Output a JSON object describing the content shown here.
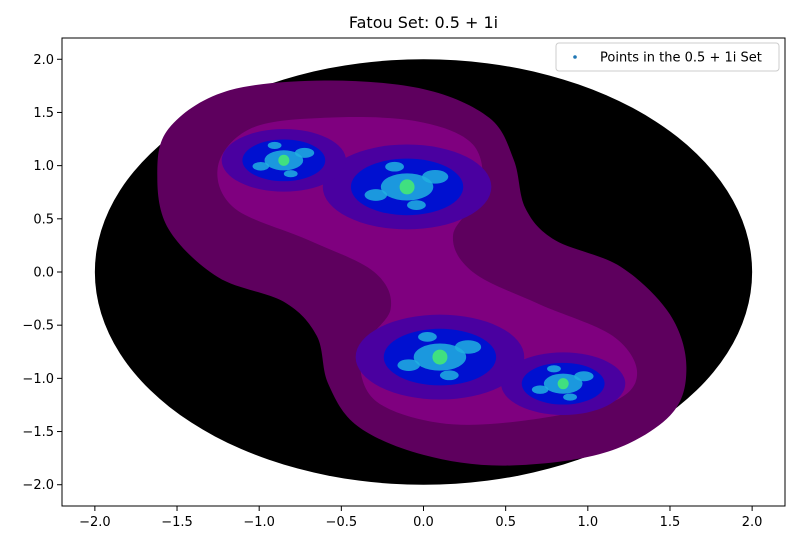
{
  "chart_data": {
    "type": "scatter",
    "title": "Fatou Set: 0.5 + 1i",
    "xlabel": "",
    "ylabel": "",
    "xlim": [
      -2.2,
      2.2
    ],
    "ylim": [
      -2.2,
      2.2
    ],
    "xticks": [
      -2.0,
      -1.5,
      -1.0,
      -0.5,
      0.0,
      0.5,
      1.0,
      1.5,
      2.0
    ],
    "yticks": [
      -2.0,
      -1.5,
      -1.0,
      -0.5,
      0.0,
      0.5,
      1.0,
      1.5,
      2.0
    ],
    "xtick_labels": [
      "−2.0",
      "−1.5",
      "−1.0",
      "−0.5",
      "0.0",
      "0.5",
      "1.0",
      "1.5",
      "2.0"
    ],
    "ytick_labels": [
      "−2.0",
      "−1.5",
      "−1.0",
      "−0.5",
      "0.0",
      "0.5",
      "1.0",
      "1.5",
      "2.0"
    ],
    "grid": false,
    "legend_position": "top-right",
    "series": [
      {
        "name": "Points in the 0.5 + 1i Set",
        "color": "#1f77b4"
      }
    ],
    "domain_radius": 2.0,
    "c": {
      "re": 0.5,
      "im": 1.0
    },
    "colors": {
      "background": "#000000",
      "outer_band": "#5e005e",
      "mid_band": "#7f007f",
      "inner_band": "#4a00a0",
      "core": "#0010d0",
      "highlight": "#20b0e0",
      "peak": "#40e080"
    }
  }
}
